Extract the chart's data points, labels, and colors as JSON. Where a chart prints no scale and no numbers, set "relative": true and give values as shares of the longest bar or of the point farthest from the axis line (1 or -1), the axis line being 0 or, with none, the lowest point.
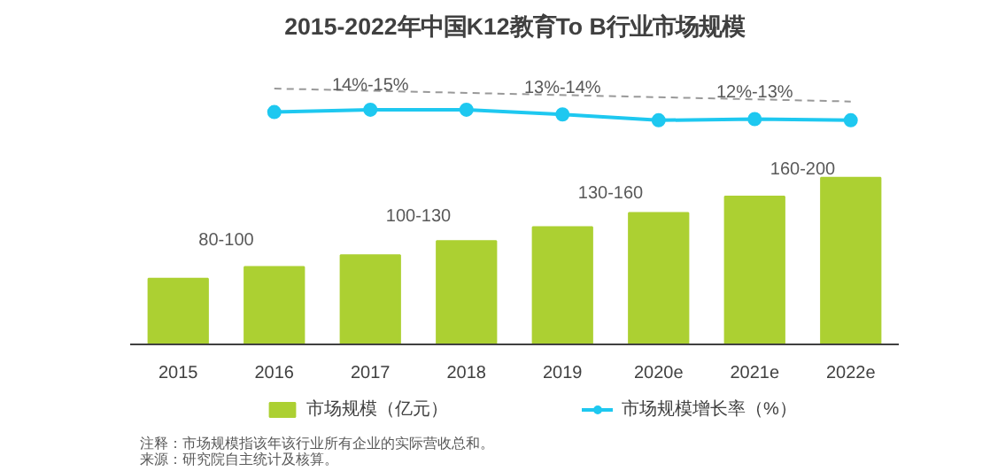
{
  "chart_data": {
    "type": "bar",
    "title": "2015-2022年中国K12教育To B行业市场规模",
    "relative": true,
    "categories": [
      "2015",
      "2016",
      "2017",
      "2018",
      "2019",
      "2020e",
      "2021e",
      "2022e"
    ],
    "series": [
      {
        "name": "市场规模（亿元）",
        "color": "#acd032",
        "values": [
          0.28,
          0.33,
          0.38,
          0.44,
          0.5,
          0.56,
          0.63,
          0.71
        ]
      },
      {
        "name": "市场规模增长率（%）",
        "color": "#1ec8f0",
        "type": "line",
        "marker": "circle",
        "values": [
          null,
          0.99,
          1.0,
          1.0,
          0.98,
          0.955,
          0.96,
          0.955
        ]
      }
    ],
    "annotations": [
      "80-100",
      "100-130",
      "130-160",
      "160-200",
      "14%-15%",
      "13%-14%",
      "12%-13%",
      "注释：市场规模指该年该行业所有企业的实际营收总和。",
      "来源：研究院自主统计及核算。"
    ],
    "legend": "bottom"
  }
}
